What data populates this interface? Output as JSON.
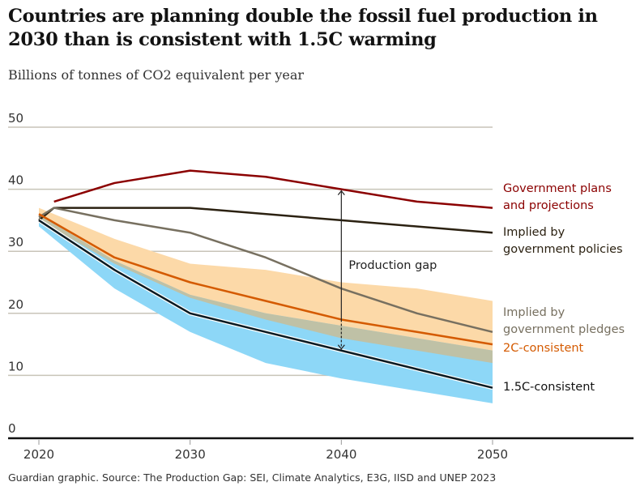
{
  "title": "Countries are planning double the fossil fuel production in 2030 than is consistent with 1.5C warming",
  "subtitle": "Billions of tonnes of CO2 equivalent per year",
  "source": "Guardian graphic. Source: The Production Gap: SEI, Climate Analytics, E3G, IISD and UNEP 2023",
  "chart_data": {
    "type": "line",
    "title": "Countries are planning double the fossil fuel production in 2030 than is consistent with 1.5C warming",
    "ylabel": "Billions of tonnes of CO2 equivalent per year",
    "xlim": [
      2020,
      2050
    ],
    "ylim": [
      0,
      50
    ],
    "x_ticks": [
      "2020",
      "2030",
      "2040",
      "2050"
    ],
    "y_ticks": [
      "0",
      "10",
      "20",
      "30",
      "40",
      "50"
    ],
    "grid": true,
    "series": [
      {
        "name": "Government plans and projections",
        "color": "#8b0000",
        "x": [
          2021,
          2025,
          2030,
          2035,
          2040,
          2045,
          2050
        ],
        "y": [
          38,
          41,
          43,
          42,
          40,
          38,
          37
        ]
      },
      {
        "name": "Implied by government policies",
        "color": "#2b2111",
        "x": [
          2020,
          2021,
          2030,
          2040,
          2050
        ],
        "y": [
          35,
          37,
          37,
          35,
          33
        ]
      },
      {
        "name": "Implied by government pledges",
        "color": "#777060",
        "x": [
          2020,
          2021,
          2025,
          2030,
          2035,
          2040,
          2045,
          2050
        ],
        "y": [
          35.5,
          37,
          35,
          33,
          29,
          24,
          20,
          17
        ]
      },
      {
        "name": "2C-consistent",
        "color": "#d45a00",
        "x": [
          2020,
          2025,
          2030,
          2035,
          2040,
          2045,
          2050
        ],
        "y": [
          36,
          29,
          25,
          22,
          19,
          17,
          15
        ]
      },
      {
        "name": "1.5C-consistent",
        "color": "#0a1a22",
        "x": [
          2020,
          2025,
          2030,
          2035,
          2040,
          2045,
          2050
        ],
        "y": [
          35,
          27,
          20,
          17,
          14,
          11,
          8
        ]
      }
    ],
    "bands": [
      {
        "of": "2C-consistent",
        "color": "#fcd9a8",
        "x": [
          2020,
          2025,
          2030,
          2035,
          2040,
          2045,
          2050
        ],
        "upper": [
          37,
          32,
          28,
          27,
          25,
          24,
          22
        ],
        "lower": [
          35,
          28,
          22.5,
          19,
          16,
          14,
          12
        ]
      },
      {
        "of": "1.5C-consistent",
        "color": "#8dd7f7",
        "x": [
          2020,
          2025,
          2030,
          2035,
          2040,
          2045,
          2050
        ],
        "upper": [
          36,
          28.5,
          23,
          20,
          18,
          16,
          14
        ],
        "lower": [
          34,
          24,
          17,
          12,
          9.5,
          7.5,
          5.5
        ]
      }
    ],
    "overlap_color": "#bfc1a6",
    "annotation": {
      "text": "Production gap",
      "x": 2040,
      "from": 14,
      "to": 40
    }
  }
}
